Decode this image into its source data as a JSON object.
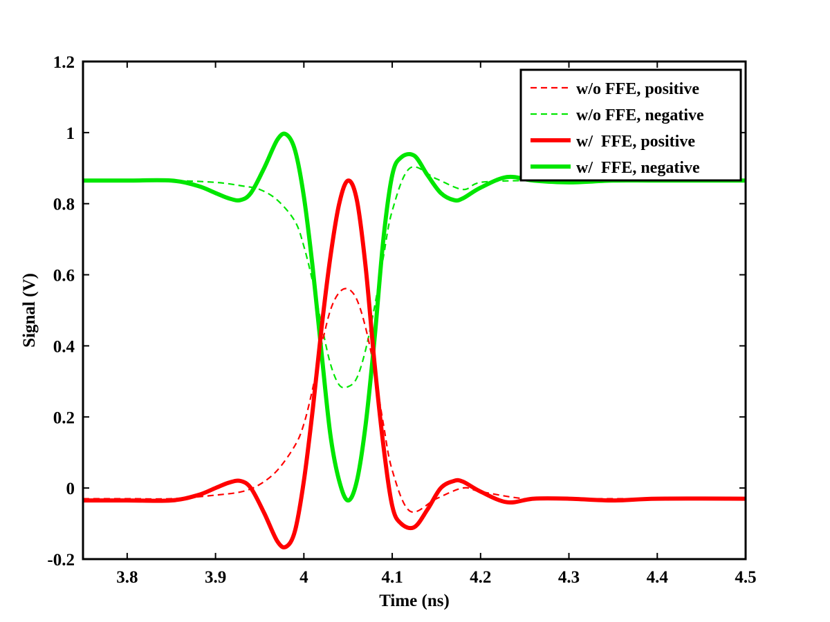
{
  "chart_data": {
    "type": "line",
    "title": "",
    "xlabel": "Time (ns)",
    "ylabel": "Signal (V)",
    "xlim": [
      3.75,
      4.5
    ],
    "ylim": [
      -0.2,
      1.2
    ],
    "xticks": [
      3.8,
      3.9,
      4.0,
      4.1,
      4.2,
      4.3,
      4.4,
      4.5
    ],
    "xtick_labels": [
      "3.8",
      "3.9",
      "4",
      "4.1",
      "4.2",
      "4.3",
      "4.4",
      "4.5"
    ],
    "yticks": [
      -0.2,
      0,
      0.2,
      0.4,
      0.6,
      0.8,
      1.0,
      1.2
    ],
    "ytick_labels": [
      "-0.2",
      "0",
      "0.2",
      "0.4",
      "0.6",
      "0.8",
      "1",
      "1.2"
    ],
    "grid": false,
    "legend_position": "top-right",
    "series": [
      {
        "name": "w/o FFE, positive",
        "color": "#ff0000",
        "style": "dashed",
        "x": [
          3.75,
          3.8,
          3.85,
          3.9,
          3.93,
          3.95,
          3.97,
          3.99,
          4.0,
          4.01,
          4.02,
          4.03,
          4.04,
          4.05,
          4.06,
          4.07,
          4.08,
          4.09,
          4.1,
          4.12,
          4.15,
          4.18,
          4.2,
          4.25,
          4.3,
          4.4,
          4.5
        ],
        "y": [
          -0.03,
          -0.03,
          -0.03,
          -0.02,
          -0.01,
          0.01,
          0.05,
          0.12,
          0.18,
          0.28,
          0.4,
          0.5,
          0.55,
          0.56,
          0.53,
          0.45,
          0.33,
          0.18,
          0.05,
          -0.065,
          -0.03,
          0.0,
          -0.01,
          -0.03,
          -0.03,
          -0.03,
          -0.03
        ]
      },
      {
        "name": "w/o FFE, negative",
        "color": "#00e600",
        "style": "dashed",
        "x": [
          3.75,
          3.8,
          3.85,
          3.9,
          3.93,
          3.95,
          3.97,
          3.99,
          4.0,
          4.01,
          4.02,
          4.03,
          4.04,
          4.05,
          4.06,
          4.07,
          4.08,
          4.09,
          4.1,
          4.12,
          4.15,
          4.18,
          4.2,
          4.25,
          4.3,
          4.4,
          4.5
        ],
        "y": [
          0.865,
          0.865,
          0.865,
          0.86,
          0.85,
          0.84,
          0.81,
          0.75,
          0.68,
          0.58,
          0.46,
          0.35,
          0.29,
          0.285,
          0.31,
          0.39,
          0.51,
          0.65,
          0.78,
          0.9,
          0.87,
          0.84,
          0.86,
          0.865,
          0.865,
          0.865,
          0.865
        ]
      },
      {
        "name": "w/  FFE, positive",
        "color": "#ff0000",
        "style": "solid",
        "x": [
          3.75,
          3.8,
          3.85,
          3.88,
          3.9,
          3.915,
          3.928,
          3.94,
          3.955,
          3.97,
          3.98,
          3.99,
          4.0,
          4.01,
          4.02,
          4.03,
          4.04,
          4.05,
          4.06,
          4.07,
          4.08,
          4.09,
          4.1,
          4.11,
          4.125,
          4.14,
          4.155,
          4.17,
          4.18,
          4.2,
          4.23,
          4.26,
          4.3,
          4.35,
          4.4,
          4.5
        ],
        "y": [
          -0.035,
          -0.035,
          -0.035,
          -0.02,
          0.0,
          0.015,
          0.02,
          0.0,
          -0.07,
          -0.15,
          -0.165,
          -0.12,
          0.02,
          0.22,
          0.45,
          0.65,
          0.8,
          0.865,
          0.81,
          0.62,
          0.35,
          0.12,
          -0.05,
          -0.1,
          -0.11,
          -0.06,
          0.0,
          0.02,
          0.018,
          -0.01,
          -0.04,
          -0.03,
          -0.03,
          -0.035,
          -0.03,
          -0.03
        ]
      },
      {
        "name": "w/  FFE, negative",
        "color": "#00e600",
        "style": "solid",
        "x": [
          3.75,
          3.8,
          3.85,
          3.88,
          3.9,
          3.915,
          3.928,
          3.94,
          3.955,
          3.97,
          3.98,
          3.99,
          4.0,
          4.01,
          4.02,
          4.03,
          4.04,
          4.05,
          4.06,
          4.07,
          4.08,
          4.09,
          4.1,
          4.11,
          4.125,
          4.14,
          4.155,
          4.17,
          4.18,
          4.2,
          4.23,
          4.26,
          4.3,
          4.35,
          4.4,
          4.5
        ],
        "y": [
          0.865,
          0.865,
          0.865,
          0.85,
          0.83,
          0.815,
          0.81,
          0.83,
          0.9,
          0.98,
          0.995,
          0.95,
          0.82,
          0.62,
          0.38,
          0.15,
          0.02,
          -0.035,
          0.02,
          0.18,
          0.42,
          0.7,
          0.88,
          0.93,
          0.935,
          0.88,
          0.83,
          0.81,
          0.815,
          0.845,
          0.875,
          0.865,
          0.86,
          0.865,
          0.865,
          0.865
        ]
      }
    ]
  }
}
